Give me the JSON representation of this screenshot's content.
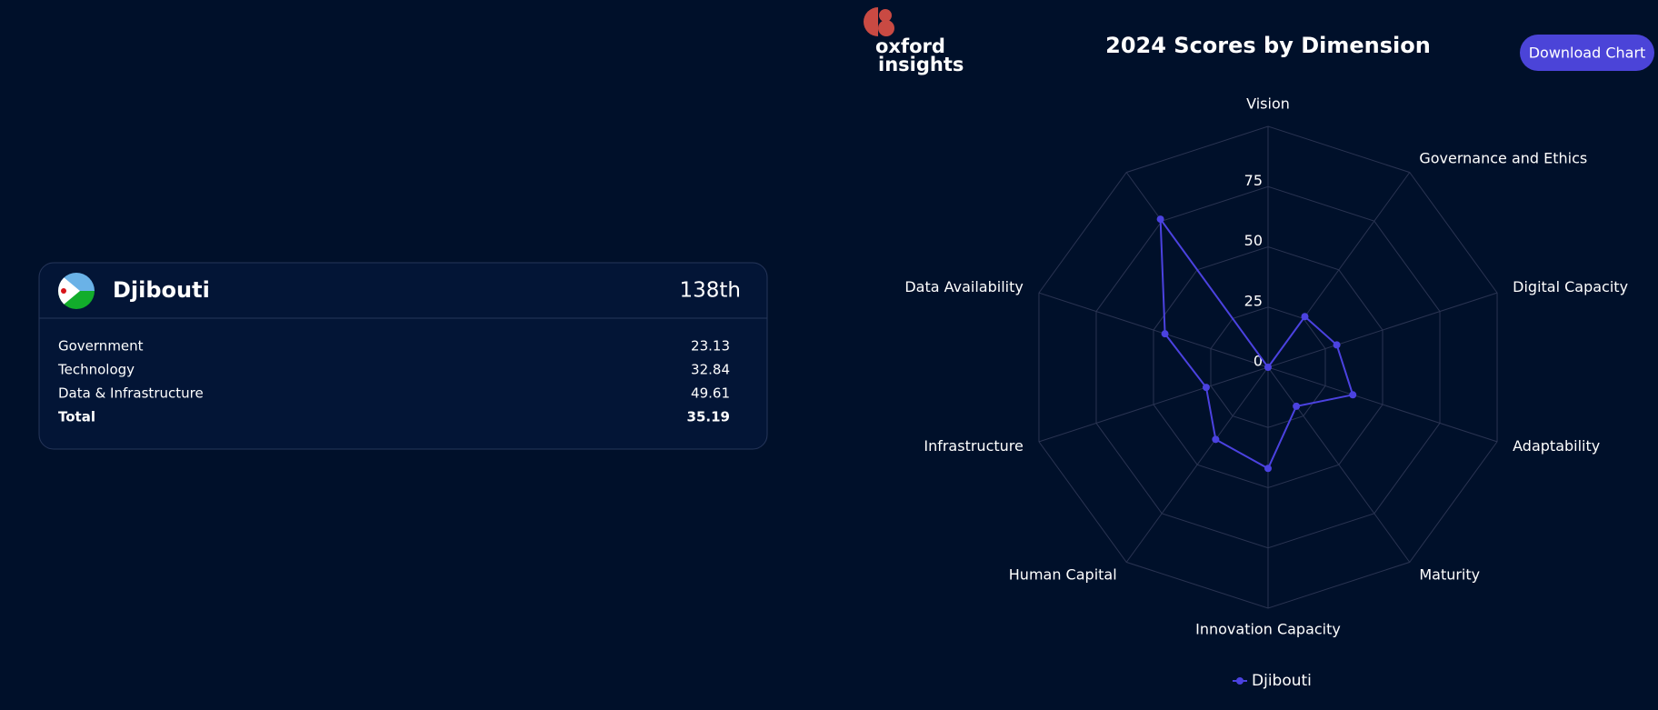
{
  "header": {
    "logo_line1": "oxford",
    "logo_line2": "insights",
    "button": "Download Chart"
  },
  "card": {
    "country": "Djibouti",
    "rank": "138th",
    "rows": [
      [
        "Government",
        23.13
      ],
      [
        "Technology",
        32.84
      ],
      [
        "Data & Infrastructure",
        49.61
      ],
      [
        "Total",
        35.19
      ]
    ]
  },
  "chart_data": {
    "type": "radar",
    "title": "2024 Scores by Dimension",
    "categories": [
      "Vision",
      "Governance and Ethics",
      "Digital Capacity",
      "Adaptability",
      "Maturity",
      "Innovation Capacity",
      "Human Capital",
      "Infrastructure",
      "Data Availability",
      null
    ],
    "series": [
      {
        "name": "Djibouti",
        "color": "#4b42e0",
        "values": [
          0,
          26,
          30,
          37,
          20,
          42,
          37,
          27,
          45,
          76
        ]
      }
    ],
    "ylim": [
      0,
      100
    ],
    "yticks": [
      0,
      25,
      50,
      75
    ],
    "grid": true
  }
}
